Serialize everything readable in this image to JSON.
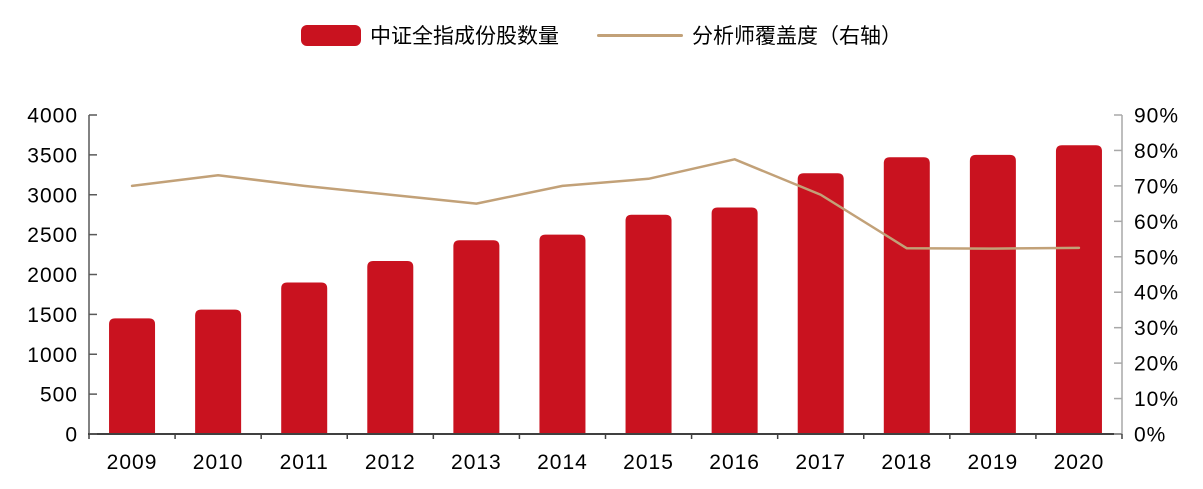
{
  "legend": {
    "position": "top-center",
    "items": [
      {
        "label": "中证全指成份股数量",
        "swatch": "bar"
      },
      {
        "label": "分析师覆盖度（右轴）",
        "swatch": "line"
      }
    ]
  },
  "chart_data": {
    "type": "combo-bar-line",
    "title": "",
    "categories": [
      "2009",
      "2010",
      "2011",
      "2012",
      "2013",
      "2014",
      "2015",
      "2016",
      "2017",
      "2018",
      "2019",
      "2020"
    ],
    "series": [
      {
        "name": "中证全指成份股数量",
        "type": "bar",
        "axis": "left",
        "color": "#C9121F",
        "values": [
          1450,
          1560,
          1900,
          2170,
          2430,
          2500,
          2750,
          2840,
          3270,
          3470,
          3500,
          3620
        ]
      },
      {
        "name": "分析师覆盖度（右轴）",
        "type": "line",
        "axis": "right",
        "color": "#C2A178",
        "unit": "%",
        "values": [
          70,
          73,
          70,
          67.5,
          65,
          70,
          72,
          77.5,
          67.5,
          52.4,
          52.3,
          52.5
        ]
      }
    ],
    "left_axis": {
      "min": 0,
      "max": 4000,
      "step": 500,
      "tick_labels": [
        "0",
        "500",
        "1000",
        "1500",
        "2000",
        "2500",
        "3000",
        "3500",
        "4000"
      ]
    },
    "right_axis": {
      "min": 0,
      "max": 90,
      "step": 10,
      "tick_labels": [
        "0%",
        "10%",
        "20%",
        "30%",
        "40%",
        "50%",
        "60%",
        "70%",
        "80%",
        "90%"
      ]
    },
    "grid": false,
    "legend_position": "top"
  },
  "colors": {
    "bar_red": "#C9121F",
    "line_tan": "#C2A178",
    "left_axis": "#595959",
    "bottom_axis": "#404040",
    "right_axis": "#A8A8A8",
    "text": "#000000"
  }
}
